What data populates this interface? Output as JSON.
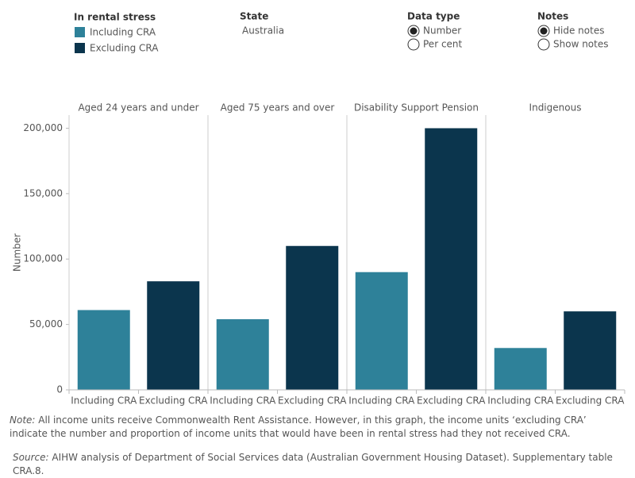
{
  "legend": {
    "title": "In rental stress",
    "items": [
      "Including CRA",
      "Excluding CRA"
    ]
  },
  "controls": [
    {
      "title": "State",
      "value": "Australia"
    },
    {
      "title": "Data type",
      "options": [
        "Number",
        "Per cent"
      ],
      "selected": 0
    },
    {
      "title": "Notes",
      "options": [
        "Hide notes",
        "Show notes"
      ],
      "selected": 0
    }
  ],
  "chart_data": {
    "type": "bar",
    "ylabel": "Number",
    "colors": [
      "#2e8199",
      "#0b354d"
    ],
    "ylim": [
      0,
      210000
    ],
    "yticks": [
      0,
      {
        "value": 50000,
        "label": "50,000"
      },
      {
        "value": 100000,
        "label": "100,000"
      },
      {
        "value": 150000,
        "label": "150,000"
      },
      {
        "value": 200000,
        "label": "200,000"
      }
    ],
    "grid": false,
    "panels": [
      {
        "title": "Aged 24 years and under",
        "categories": [
          "Including CRA",
          "Excluding CRA"
        ],
        "values": [
          61000,
          83000
        ]
      },
      {
        "title": "Aged 75 years and over",
        "categories": [
          "Including CRA",
          "Excluding CRA"
        ],
        "values": [
          54000,
          110000
        ]
      },
      {
        "title": "Disability Support Pension",
        "categories": [
          "Including CRA",
          "Excluding CRA"
        ],
        "values": [
          90000,
          200000
        ]
      },
      {
        "title": "Indigenous",
        "categories": [
          "Including CRA",
          "Excluding CRA"
        ],
        "values": [
          32000,
          60000
        ]
      }
    ]
  },
  "note": {
    "label": "Note:",
    "text": "All income units receive Commonwealth Rent Assistance. However, in this graph, the income units ‘excluding CRA’ indicate the number and proportion of income units that would have been in rental stress had they not received CRA."
  },
  "source": {
    "label": "Source:",
    "text": "AIHW analysis of Department of Social Services data (Australian Government Housing Dataset). Supplementary table CRA.8."
  }
}
